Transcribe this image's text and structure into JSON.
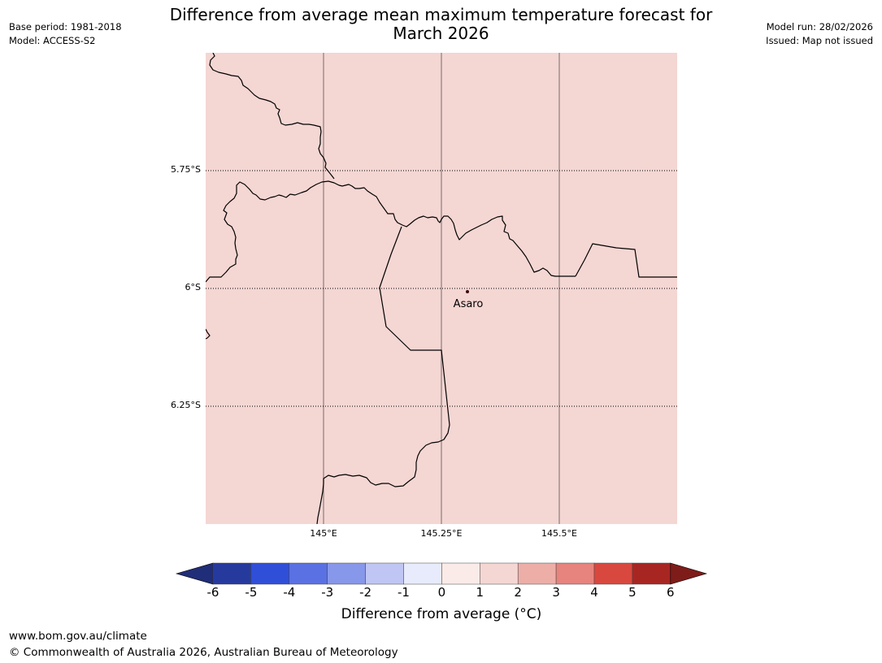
{
  "title": "Difference from average mean maximum temperature forecast for\nMarch 2026",
  "meta_left": {
    "line1": "Base period: 1981-2018",
    "line2": "Model: ACCESS-S2"
  },
  "meta_right": {
    "line1": "Model run: 28/02/2026",
    "line2": "Issued: Map not issued"
  },
  "map": {
    "background_fill": "#f4d6d3",
    "latitude_labels": [
      "5.75°S",
      "6°S",
      "6.25°S"
    ],
    "longitude_labels": [
      "145°E",
      "145.25°E",
      "145.5°E"
    ],
    "place": {
      "name": "Asaro"
    }
  },
  "colorbar": {
    "ticks": [
      "-6",
      "-5",
      "-4",
      "-3",
      "-2",
      "-1",
      "0",
      "1",
      "2",
      "3",
      "4",
      "5",
      "6"
    ],
    "colors": [
      "#263a9e",
      "#304fd9",
      "#5a71e3",
      "#8797ea",
      "#bfc6f3",
      "#e8ebfb",
      "#fbebe8",
      "#f4d6d3",
      "#edaea8",
      "#e6847d",
      "#d9483e",
      "#a82622"
    ],
    "under_color": "#202d78",
    "over_color": "#7e1c1a",
    "label": "Difference from average (°C)"
  },
  "footer": {
    "url": "www.bom.gov.au/climate",
    "copyright": "© Commonwealth of Australia 2026, Australian Bureau of Meteorology"
  }
}
